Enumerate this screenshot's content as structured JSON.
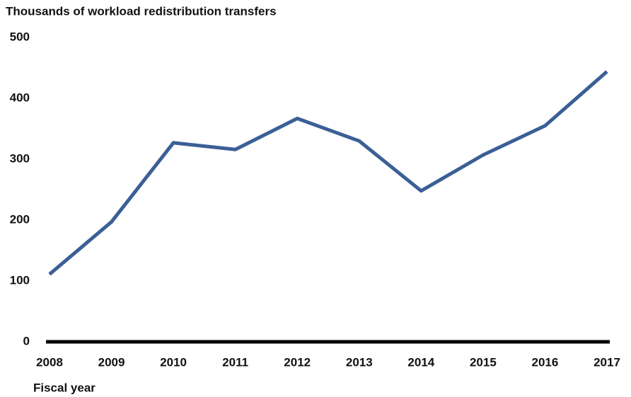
{
  "chart_data": {
    "type": "line",
    "title": "Thousands of workload redistribution transfers",
    "x_label": "Fiscal year",
    "categories": [
      "2008",
      "2009",
      "2010",
      "2011",
      "2012",
      "2013",
      "2014",
      "2015",
      "2016",
      "2017"
    ],
    "series": [
      {
        "name": null,
        "color": "#3b5f96",
        "values": [
          111,
          197,
          327,
          316,
          367,
          330,
          248,
          307,
          355,
          444
        ]
      }
    ],
    "ylim": [
      0,
      500
    ],
    "yticks": [
      0,
      100,
      200,
      300,
      400,
      500
    ],
    "grid": false
  }
}
